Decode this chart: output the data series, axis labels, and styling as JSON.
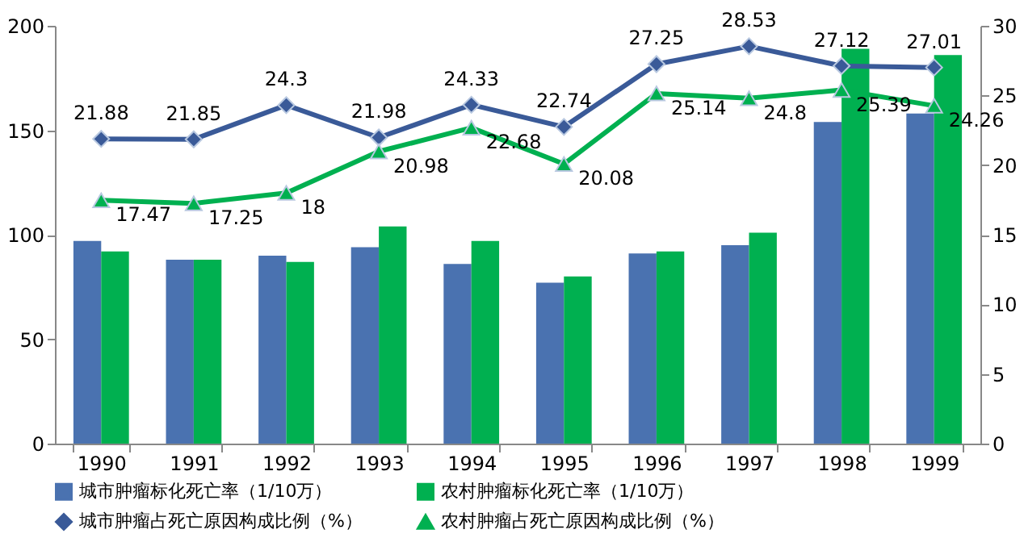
{
  "chart_data": {
    "type": "bar",
    "categories": [
      "1990",
      "1991",
      "1992",
      "1993",
      "1994",
      "1995",
      "1996",
      "1997",
      "1998",
      "1999"
    ],
    "series": [
      {
        "name": "城市肿瘤标化死亡率（1/10万）",
        "color": "#4a72b0",
        "values": [
          97,
          88,
          90,
          94,
          86,
          77,
          91,
          95,
          154,
          158
        ]
      },
      {
        "name": "农村肿瘤标化死亡率（1/10万）",
        "color": "#00b050",
        "values": [
          92,
          88,
          87,
          104,
          97,
          80,
          92,
          101,
          189,
          186
        ]
      },
      {
        "name": "城市肿瘤占死亡原因构成比例（%）",
        "type": "line",
        "axis": "y2",
        "marker": "diamond",
        "color": "#3a5a98",
        "values": [
          21.88,
          21.85,
          24.3,
          21.98,
          24.33,
          22.74,
          27.25,
          28.53,
          27.12,
          27.01
        ],
        "value_labels": [
          "21.88",
          "21.85",
          "24.3",
          "21.98",
          "24.33",
          "22.74",
          "27.25",
          "28.53",
          "27.12",
          "27.01"
        ]
      },
      {
        "name": "农村肿瘤占死亡原因构成比例（%）",
        "type": "line",
        "axis": "y2",
        "marker": "triangle",
        "color": "#00b050",
        "values": [
          17.47,
          17.25,
          18,
          20.98,
          22.68,
          20.08,
          25.14,
          24.8,
          25.39,
          24.26
        ],
        "value_labels": [
          "17.47",
          "17.25",
          "18",
          "20.98",
          "22.68",
          "20.08",
          "25.14",
          "24.8",
          "25.39",
          "24.26"
        ]
      }
    ],
    "ylim": [
      0,
      200
    ],
    "yticks": [
      0,
      50,
      100,
      150,
      200
    ],
    "y2lim": [
      0,
      30
    ],
    "y2ticks": [
      0,
      5,
      10,
      15,
      20,
      25,
      30
    ],
    "grid": false,
    "legend": "bottom"
  }
}
